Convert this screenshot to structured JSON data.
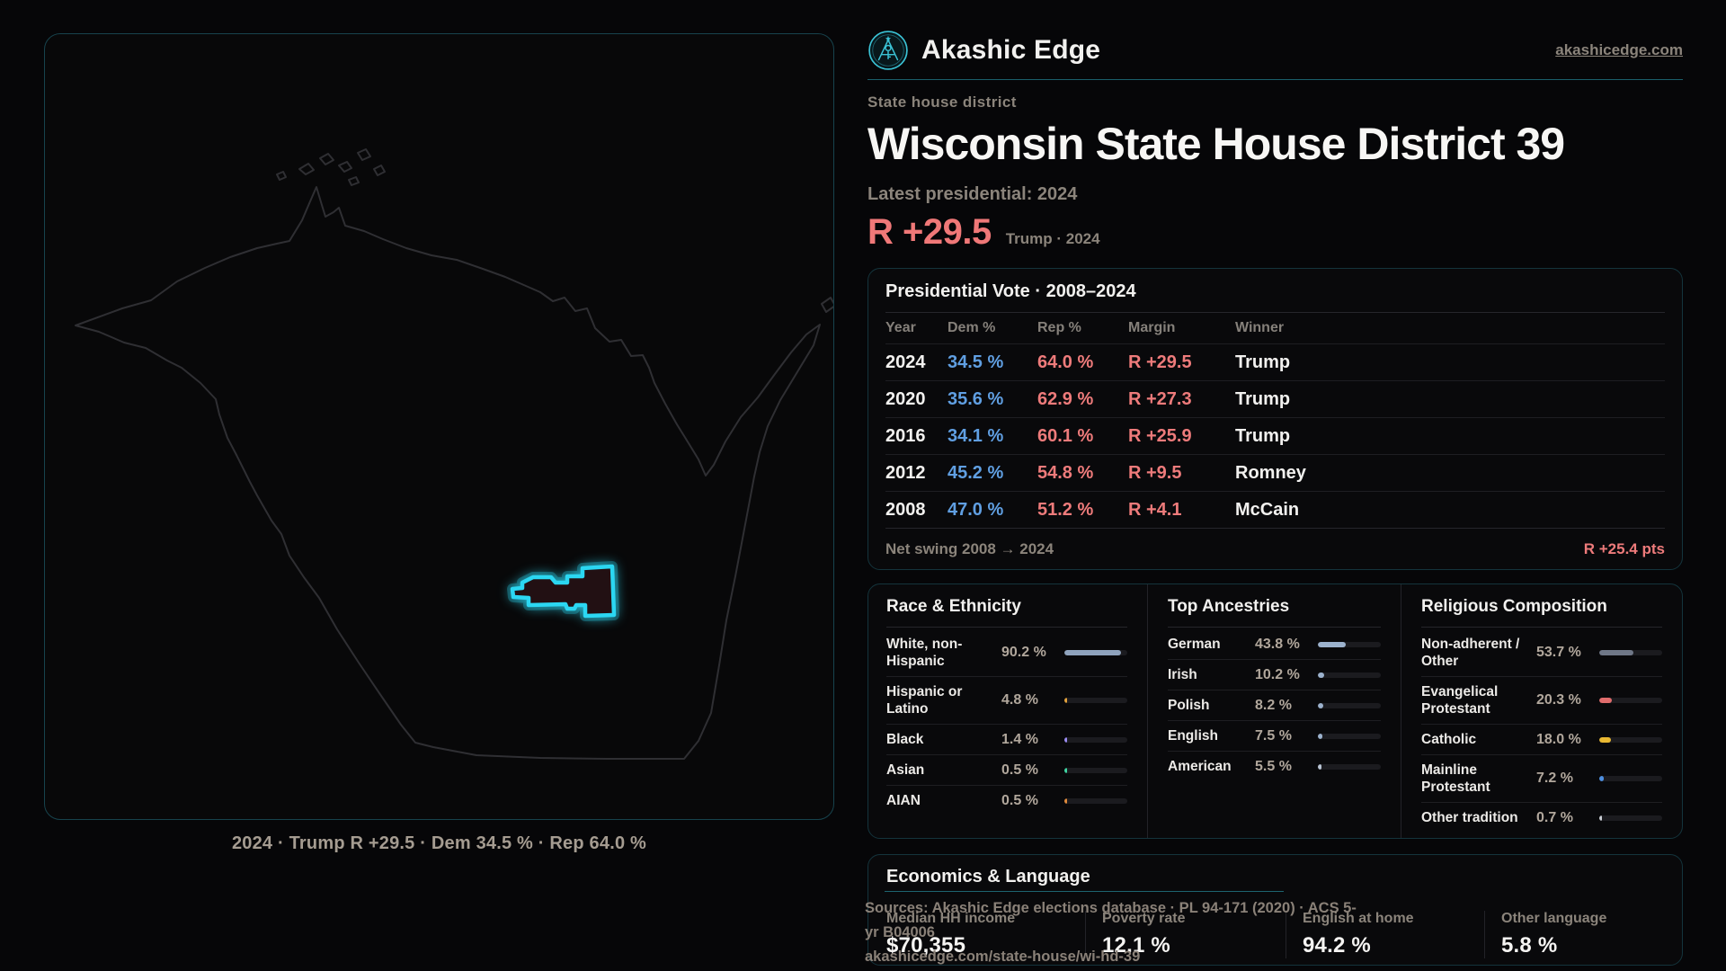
{
  "brand": {
    "name": "Akashic Edge",
    "site": "akashicedge.com"
  },
  "header": {
    "eyebrow": "State house district",
    "title": "Wisconsin State House District 39",
    "latest_label": "Latest presidential: 2024",
    "margin_value": "R +29.5",
    "margin_context": "Trump · 2024"
  },
  "map": {
    "caption": "2024 · Trump R +29.5 · Dem 34.5 % · Rep 64.0 %",
    "district_outline_color": "#2bd7f2",
    "state_outline_color": "#2f2f33"
  },
  "vote_table": {
    "title": "Presidential Vote · 2008–2024",
    "columns": {
      "year": "Year",
      "dem": "Dem %",
      "rep": "Rep %",
      "margin": "Margin",
      "winner": "Winner"
    },
    "rows": [
      {
        "year": "2024",
        "dem": "34.5 %",
        "rep": "64.0 %",
        "margin": "R +29.5",
        "winner": "Trump"
      },
      {
        "year": "2020",
        "dem": "35.6 %",
        "rep": "62.9 %",
        "margin": "R +27.3",
        "winner": "Trump"
      },
      {
        "year": "2016",
        "dem": "34.1 %",
        "rep": "60.1 %",
        "margin": "R +25.9",
        "winner": "Trump"
      },
      {
        "year": "2012",
        "dem": "45.2 %",
        "rep": "54.8 %",
        "margin": "R +9.5",
        "winner": "Romney"
      },
      {
        "year": "2008",
        "dem": "47.0 %",
        "rep": "51.2 %",
        "margin": "R +4.1",
        "winner": "McCain"
      }
    ],
    "footer_label": "Net swing 2008 → 2024",
    "footer_value": "R +25.4 pts"
  },
  "chart_data": [
    {
      "type": "bar",
      "title": "Race & Ethnicity",
      "categories": [
        "White, non-Hispanic",
        "Hispanic or Latino",
        "Black",
        "Asian",
        "AIAN"
      ],
      "values": [
        90.2,
        4.8,
        1.4,
        0.5,
        0.5
      ],
      "unit": "%",
      "xlim": [
        0,
        100
      ]
    },
    {
      "type": "bar",
      "title": "Top Ancestries",
      "categories": [
        "German",
        "Irish",
        "Polish",
        "English",
        "American"
      ],
      "values": [
        43.8,
        10.2,
        8.2,
        7.5,
        5.5
      ],
      "unit": "%",
      "xlim": [
        0,
        100
      ]
    },
    {
      "type": "bar",
      "title": "Religious Composition",
      "categories": [
        "Non-adherent / Other",
        "Evangelical Protestant",
        "Catholic",
        "Mainline Protestant",
        "Other tradition"
      ],
      "values": [
        53.7,
        20.3,
        18.0,
        7.2,
        0.7
      ],
      "unit": "%",
      "xlim": [
        0,
        100
      ]
    }
  ],
  "race": {
    "title": "Race & Ethnicity",
    "rows": [
      {
        "label": "White, non-Hispanic",
        "value": "90.2 %",
        "pct": 90.2,
        "color": "#8fa3bd"
      },
      {
        "label": "Hispanic or Latino",
        "value": "4.8 %",
        "pct": 4.8,
        "color": "#e3a23c"
      },
      {
        "label": "Black",
        "value": "1.4 %",
        "pct": 1.4,
        "color": "#9b8cf2"
      },
      {
        "label": "Asian",
        "value": "0.5 %",
        "pct": 0.5,
        "color": "#3fd6a3"
      },
      {
        "label": "AIAN",
        "value": "0.5 %",
        "pct": 0.5,
        "color": "#e08a3c"
      }
    ]
  },
  "ancestries": {
    "title": "Top Ancestries",
    "rows": [
      {
        "label": "German",
        "value": "43.8 %",
        "pct": 43.8,
        "color": "#9cb2cd"
      },
      {
        "label": "Irish",
        "value": "10.2 %",
        "pct": 10.2,
        "color": "#9cb2cd"
      },
      {
        "label": "Polish",
        "value": "8.2 %",
        "pct": 8.2,
        "color": "#9cb2cd"
      },
      {
        "label": "English",
        "value": "7.5 %",
        "pct": 7.5,
        "color": "#9cb2cd"
      },
      {
        "label": "American",
        "value": "5.5 %",
        "pct": 5.5,
        "color": "#b9c4d4"
      }
    ]
  },
  "religion": {
    "title": "Religious Composition",
    "rows": [
      {
        "label": "Non-adherent / Other",
        "value": "53.7 %",
        "pct": 53.7,
        "color": "#6f7787"
      },
      {
        "label": "Evangelical Protestant",
        "value": "20.3 %",
        "pct": 20.3,
        "color": "#e06c6c"
      },
      {
        "label": "Catholic",
        "value": "18.0 %",
        "pct": 18.0,
        "color": "#e9b832"
      },
      {
        "label": "Mainline Protestant",
        "value": "7.2 %",
        "pct": 7.2,
        "color": "#4e8fe0"
      },
      {
        "label": "Other tradition",
        "value": "0.7 %",
        "pct": 0.7,
        "color": "#c9cdd4"
      }
    ]
  },
  "economics": {
    "title": "Economics & Language",
    "stats": [
      {
        "label": "Median HH income",
        "value": "$70,355"
      },
      {
        "label": "Poverty rate",
        "value": "12.1 %"
      },
      {
        "label": "English at home",
        "value": "94.2 %"
      },
      {
        "label": "Other language",
        "value": "5.8 %"
      }
    ]
  },
  "source": {
    "line1": "Sources: Akashic Edge elections database · PL 94-171 (2020) · ACS 5-yr B04006",
    "line2": "akashicedge.com/state-house/wi-hd-39"
  },
  "colors": {
    "accent_cyan": "#2bd7f2",
    "rep_red": "#ee7b7b",
    "dem_blue": "#609fe2",
    "teal_divider": "#1a5f6a",
    "muted_text": "#8b847b",
    "panel_border": "#14343c"
  }
}
